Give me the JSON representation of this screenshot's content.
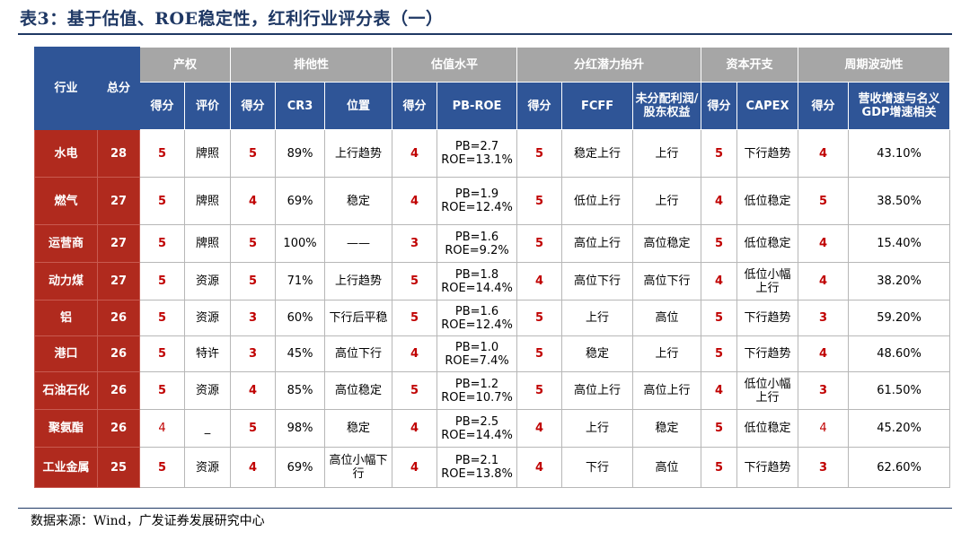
{
  "title": "表3：基于估值、ROE稳定性，红利行业评分表（一）",
  "source": "数据来源：Wind，广发证券发展研究中心",
  "header": {
    "industry": "行业",
    "total": "总分",
    "groups": [
      "产权",
      "排他性",
      "估值水平",
      "分红潜力抬升",
      "资本开支",
      "周期波动性"
    ],
    "sub": [
      "得分",
      "评价",
      "得分",
      "CR3",
      "位置",
      "得分",
      "PB-ROE",
      "得分",
      "FCFF",
      "未分配利润/股东权益",
      "得分",
      "CAPEX",
      "得分",
      "营收增速与名义GDP增速相关"
    ]
  },
  "rows": [
    {
      "industry": "水电",
      "total": "28",
      "c": [
        "5",
        "牌照",
        "5",
        "89%",
        "上行趋势",
        "4",
        "PB=2.7\nROE=13.1%",
        "5",
        "稳定上行",
        "上行",
        "5",
        "下行趋势",
        "4",
        "43.10%"
      ]
    },
    {
      "industry": "燃气",
      "total": "27",
      "c": [
        "5",
        "牌照",
        "4",
        "69%",
        "稳定",
        "4",
        "PB=1.9\nROE=12.4%",
        "5",
        "低位上行",
        "上行",
        "4",
        "低位稳定",
        "5",
        "38.50%"
      ]
    },
    {
      "industry": "运营商",
      "total": "27",
      "c": [
        "5",
        "牌照",
        "5",
        "100%",
        "——",
        "3",
        "PB=1.6\nROE=9.2%",
        "5",
        "高位上行",
        "高位稳定",
        "5",
        "低位稳定",
        "4",
        "15.40%"
      ]
    },
    {
      "industry": "动力煤",
      "total": "27",
      "c": [
        "5",
        "资源",
        "5",
        "71%",
        "上行趋势",
        "5",
        "PB=1.8\nROE=14.4%",
        "4",
        "高位下行",
        "高位下行",
        "4",
        "低位小幅\n上行",
        "4",
        "38.20%"
      ]
    },
    {
      "industry": "铝",
      "total": "26",
      "c": [
        "5",
        "资源",
        "3",
        "60%",
        "下行后平稳",
        "5",
        "PB=1.6\nROE=12.4%",
        "5",
        "上行",
        "高位",
        "5",
        "下行趋势",
        "3",
        "59.20%"
      ]
    },
    {
      "industry": "港口",
      "total": "26",
      "c": [
        "5",
        "特许",
        "3",
        "45%",
        "高位下行",
        "4",
        "PB=1.0\nROE=7.4%",
        "5",
        "稳定",
        "上行",
        "5",
        "下行趋势",
        "4",
        "48.60%"
      ]
    },
    {
      "industry": "石油石化",
      "total": "26",
      "c": [
        "5",
        "资源",
        "4",
        "85%",
        "高位稳定",
        "5",
        "PB=1.2\nROE=10.7%",
        "5",
        "高位上行",
        "高位上行",
        "4",
        "低位小幅\n上行",
        "3",
        "61.50%"
      ]
    },
    {
      "industry": "聚氨酯",
      "total": "26",
      "c": [
        "4",
        "_",
        "5",
        "98%",
        "稳定",
        "4",
        "PB=2.5\nROE=14.4%",
        "4",
        "上行",
        "稳定",
        "5",
        "低位稳定",
        "4",
        "45.20%"
      ]
    },
    {
      "industry": "工业金属",
      "total": "25",
      "c": [
        "5",
        "资源",
        "4",
        "69%",
        "高位小幅下\n行",
        "4",
        "PB=2.1\nROE=13.8%",
        "4",
        "下行",
        "高位",
        "5",
        "下行趋势",
        "3",
        "62.60%"
      ]
    }
  ],
  "colors": {
    "header_blue": "#2F5597",
    "header_gray": "#A6A6A6",
    "industry_red": "#B02A1E",
    "score_red": "#C00000",
    "title_navy": "#1F3864"
  }
}
